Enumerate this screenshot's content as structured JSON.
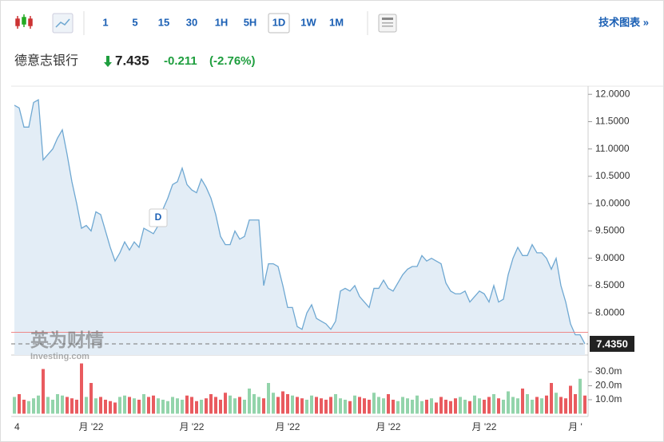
{
  "toolbar": {
    "intervals": [
      "1",
      "5",
      "15",
      "30",
      "1H",
      "5H",
      "1D",
      "1W",
      "1M"
    ],
    "active": "1D",
    "link": "技术图表 »"
  },
  "header": {
    "name": "德意志银行",
    "price": "7.435",
    "change": "-0.211",
    "change_pct": "(-2.76%)"
  },
  "chart_data": {
    "type": "line",
    "categories": [
      "4",
      null,
      null,
      null,
      null,
      null,
      null,
      null,
      null,
      null,
      null,
      null,
      null,
      null,
      null,
      null,
      "月 '22",
      null,
      null,
      null,
      null,
      null,
      null,
      null,
      null,
      null,
      null,
      null,
      null,
      null,
      null,
      null,
      null,
      null,
      null,
      null,
      null,
      "月 '22",
      null,
      null,
      null,
      null,
      null,
      null,
      null,
      null,
      null,
      null,
      null,
      null,
      null,
      null,
      null,
      null,
      null,
      null,
      null,
      "月 '22",
      null,
      null,
      null,
      null,
      null,
      null,
      null,
      null,
      null,
      null,
      null,
      null,
      null,
      null,
      null,
      null,
      null,
      null,
      null,
      null,
      "月 '22",
      null,
      null,
      null,
      null,
      null,
      null,
      null,
      null,
      null,
      null,
      null,
      null,
      null,
      null,
      null,
      null,
      null,
      null,
      null,
      "月 '22",
      null,
      null,
      null,
      null,
      null,
      null,
      null,
      null,
      null,
      null,
      null,
      null,
      null,
      null,
      null,
      null,
      null,
      null,
      "月 '",
      null,
      null
    ],
    "price": {
      "color": "#6fa8d2",
      "fill": "#e3edf6",
      "values": [
        11.8,
        11.75,
        11.4,
        11.4,
        11.85,
        11.9,
        10.8,
        10.9,
        11.0,
        11.2,
        11.35,
        10.9,
        10.4,
        10.0,
        9.55,
        9.6,
        9.5,
        9.85,
        9.8,
        9.5,
        9.2,
        8.95,
        9.1,
        9.3,
        9.15,
        9.3,
        9.2,
        9.55,
        9.5,
        9.45,
        9.6,
        9.9,
        10.1,
        10.35,
        10.4,
        10.65,
        10.35,
        10.25,
        10.2,
        10.45,
        10.3,
        10.1,
        9.8,
        9.4,
        9.25,
        9.25,
        9.5,
        9.35,
        9.4,
        9.7,
        9.7,
        9.7,
        8.5,
        8.9,
        8.9,
        8.85,
        8.5,
        8.1,
        8.1,
        7.75,
        7.7,
        8.0,
        8.15,
        7.9,
        7.85,
        7.8,
        7.7,
        7.85,
        8.4,
        8.45,
        8.4,
        8.5,
        8.3,
        8.2,
        8.1,
        8.45,
        8.45,
        8.6,
        8.45,
        8.4,
        8.55,
        8.7,
        8.8,
        8.85,
        8.85,
        9.05,
        8.95,
        9.0,
        8.95,
        8.9,
        8.55,
        8.4,
        8.35,
        8.35,
        8.4,
        8.2,
        8.3,
        8.4,
        8.35,
        8.2,
        8.5,
        8.2,
        8.25,
        8.7,
        9.0,
        9.2,
        9.05,
        9.05,
        9.25,
        9.1,
        9.1,
        9.0,
        8.8,
        9.0,
        8.5,
        8.2,
        7.8,
        7.6,
        7.6,
        7.435
      ],
      "ylim": [
        7.23,
        12.12
      ],
      "yticks": [
        {
          "value": 12,
          "label": "12.0000"
        },
        {
          "value": 11.5,
          "label": "11.5000"
        },
        {
          "value": 11,
          "label": "11.0000"
        },
        {
          "value": 10.5,
          "label": "10.5000"
        },
        {
          "value": 10,
          "label": "10.0000"
        },
        {
          "value": 9.5,
          "label": "9.5000"
        },
        {
          "value": 9,
          "label": "9.0000"
        },
        {
          "value": 8.5,
          "label": "8.5000"
        },
        {
          "value": 8,
          "label": "8.0000"
        }
      ],
      "last": {
        "value": 7.435,
        "label": "7.4350"
      },
      "prev_close": 7.646,
      "marker": "D"
    },
    "volume": {
      "type": "bar",
      "up_color": "#93d4ab",
      "down_color": "#e95b5f",
      "values": [
        12,
        14,
        10,
        9,
        11,
        13,
        32,
        12,
        10,
        14,
        13,
        12,
        11,
        10,
        36,
        12,
        22,
        11,
        12,
        10,
        9,
        8,
        12,
        13,
        12,
        11,
        10,
        14,
        12,
        13,
        11,
        10,
        9,
        12,
        11,
        10,
        13,
        12,
        9,
        10,
        11,
        14,
        12,
        10,
        15,
        13,
        11,
        12,
        10,
        18,
        14,
        12,
        11,
        22,
        15,
        12,
        16,
        14,
        13,
        12,
        11,
        10,
        13,
        12,
        11,
        10,
        12,
        14,
        11,
        10,
        9,
        13,
        12,
        11,
        10,
        15,
        12,
        11,
        14,
        10,
        9,
        12,
        11,
        10,
        13,
        9,
        10,
        11,
        8,
        12,
        10,
        9,
        11,
        12,
        10,
        9,
        13,
        11,
        10,
        12,
        14,
        11,
        10,
        16,
        12,
        11,
        18,
        14,
        10,
        12,
        11,
        13,
        22,
        15,
        12,
        11,
        20,
        14,
        25,
        13
      ],
      "ylim": [
        0,
        36.3
      ],
      "yticks": [
        {
          "value": 30,
          "label": "30.0m"
        },
        {
          "value": 20,
          "label": "20.0m"
        },
        {
          "value": 10,
          "label": "10.0m"
        }
      ]
    },
    "watermark": "英为财情",
    "watermark_sub": "Investing.com"
  }
}
